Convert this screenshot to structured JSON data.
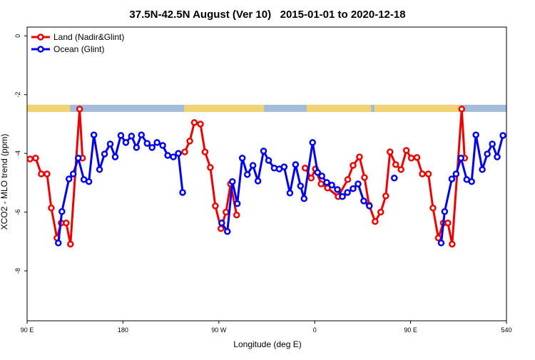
{
  "chart_data": {
    "type": "line",
    "title": "37.5N-42.5N August (Ver 10)   2015-01-01 to 2020-12-18",
    "xlabel": "Longitude (deg E)",
    "ylabel": "XCO2 - MLO trend (ppm)",
    "xlim": [
      90,
      540
    ],
    "ylim": [
      -9.7,
      0.3
    ],
    "xticks": [
      {
        "value": 90,
        "label": "90 E"
      },
      180,
      {
        "value": 270,
        "label": "90 W"
      },
      {
        "value": 360,
        "label": "0"
      },
      {
        "value": 450,
        "label": "90 E"
      },
      540
    ],
    "yticks": [
      0,
      -2,
      -4,
      -6,
      -8
    ],
    "legend": "top-left",
    "series": [
      {
        "name": "Land (Nadir&Glint)",
        "color": "#ee0000",
        "x": [
          92.7,
          98,
          103.3,
          108.7,
          112.7,
          118,
          122,
          126.7,
          130.7,
          139.3,
          142,
          null,
          238,
          242.7,
          247,
          252.7,
          257,
          262,
          266.7,
          272,
          276.7,
          281,
          286.7,
          null,
          351,
          356.7,
          360.7,
          366,
          372,
          382,
          391,
          396,
          402,
          406.7,
          411,
          416.7,
          422,
          426.7,
          430.7,
          436,
          441,
          446,
          450.7,
          456,
          461,
          466.7,
          471,
          476,
          480.7,
          485,
          489,
          498,
          500.7
        ],
        "values": [
          -4.19,
          -4.16,
          -4.7,
          -4.7,
          -5.86,
          -6.88,
          -6.37,
          -6.37,
          -7.09,
          -2.49,
          -4.16,
          null,
          -3.95,
          -3.58,
          -2.95,
          -3.0,
          -3.95,
          -4.48,
          -5.79,
          -6.56,
          -6.0,
          -5.04,
          -6.1,
          null,
          -4.5,
          -4.84,
          -4.53,
          -5.04,
          -5.18,
          -5.47,
          -4.89,
          -4.41,
          -4.12,
          -4.82,
          -5.76,
          -6.32,
          -6.0,
          -5.45,
          -3.95,
          -4.38,
          -4.55,
          -3.9,
          -4.16,
          -4.14,
          -4.7,
          -4.7,
          -5.86,
          -6.88,
          -6.37,
          -6.37,
          -7.09,
          -2.49,
          -4.16
        ]
      },
      {
        "name": "Ocean (Glint)",
        "color": "#0000ee",
        "x": [
          119.3,
          122.7,
          129.3,
          133.3,
          138,
          143.3,
          148,
          152.7,
          158,
          162.7,
          168,
          172.7,
          178,
          182.7,
          188,
          192.7,
          197.3,
          202.7,
          207.3,
          212,
          217.3,
          222,
          227.3,
          232,
          236,
          null,
          272.7,
          278,
          282.7,
          287.3,
          292,
          296.7,
          302,
          306.7,
          312,
          316.7,
          322,
          326.7,
          331.3,
          336.7,
          342,
          346.7,
          350,
          358,
          362.7,
          366.7,
          371.3,
          376,
          381.3,
          386,
          390.7,
          396,
          400.7,
          406,
          411.3,
          null,
          434.7,
          null,
          478.7,
          482,
          488.7,
          492.7,
          497.3,
          502.7,
          507.3,
          511.3,
          517.3,
          522,
          526.7,
          531.3,
          536.7
        ],
        "values": [
          -7.05,
          -5.98,
          -4.87,
          -4.7,
          -4.16,
          -4.89,
          -4.96,
          -3.37,
          -4.55,
          -4.02,
          -3.68,
          -4.12,
          -3.39,
          -3.63,
          -3.41,
          -3.8,
          -3.37,
          -3.66,
          -3.8,
          -3.63,
          -3.73,
          -4.07,
          -4.12,
          -4.0,
          -5.33,
          null,
          -6.37,
          -6.66,
          -4.96,
          -5.71,
          -4.16,
          -4.72,
          -4.41,
          -4.94,
          -3.92,
          -4.24,
          -4.5,
          -4.53,
          -4.46,
          -5.35,
          -4.38,
          -5.11,
          -5.54,
          -3.63,
          -4.65,
          -4.77,
          -4.99,
          -5.08,
          -5.23,
          -5.47,
          -5.33,
          -5.2,
          -5.04,
          -5.62,
          -5.79,
          null,
          -4.84,
          null,
          -7.05,
          -5.98,
          -4.87,
          -4.7,
          -4.16,
          -4.89,
          -4.96,
          -3.37,
          -4.55,
          -4.02,
          -3.68,
          -4.12,
          -3.39
        ]
      }
    ]
  }
}
